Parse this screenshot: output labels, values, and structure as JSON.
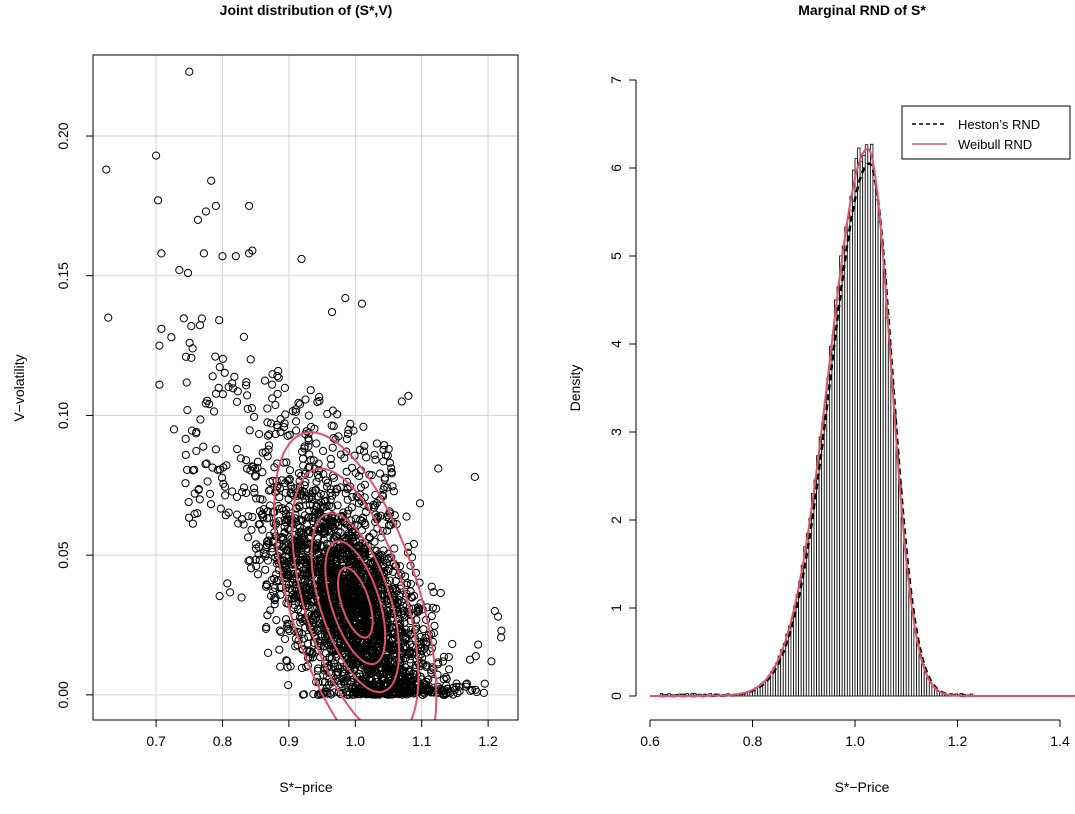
{
  "chart_data": [
    {
      "type": "scatter",
      "title": "Joint distribution of (S*,V)",
      "xlabel": "S*−price",
      "ylabel": "V−volatility",
      "xlim": [
        0.605,
        1.245
      ],
      "ylim": [
        -0.009,
        0.229
      ],
      "xticks": [
        0.7,
        0.8,
        0.9,
        1.0,
        1.1,
        1.2
      ],
      "xtick_labels": [
        "0.7",
        "0.8",
        "0.9",
        "1.0",
        "1.1",
        "1.2"
      ],
      "yticks": [
        0.0,
        0.05,
        0.1,
        0.15,
        0.2
      ],
      "ytick_labels": [
        "0.00",
        "0.05",
        "0.10",
        "0.15",
        "0.20"
      ],
      "grid": true,
      "marker": "open-circle",
      "outlier_points": [
        [
          0.625,
          0.188
        ],
        [
          0.75,
          0.223
        ],
        [
          0.628,
          0.135
        ],
        [
          0.7,
          0.193
        ],
        [
          0.703,
          0.177
        ],
        [
          0.783,
          0.184
        ],
        [
          0.79,
          0.175
        ],
        [
          0.84,
          0.175
        ],
        [
          0.919,
          0.156
        ],
        [
          0.708,
          0.158
        ],
        [
          0.763,
          0.17
        ],
        [
          0.775,
          0.173
        ],
        [
          0.708,
          0.131
        ],
        [
          0.705,
          0.125
        ],
        [
          0.705,
          0.111
        ],
        [
          0.735,
          0.152
        ],
        [
          0.748,
          0.151
        ],
        [
          0.723,
          0.128
        ],
        [
          0.727,
          0.095
        ],
        [
          0.755,
          0.124
        ],
        [
          0.749,
          0.069
        ],
        [
          0.762,
          0.065
        ],
        [
          0.772,
          0.158
        ],
        [
          0.8,
          0.157
        ],
        [
          0.82,
          0.157
        ],
        [
          0.84,
          0.158
        ],
        [
          0.845,
          0.159
        ],
        [
          0.985,
          0.142
        ],
        [
          1.01,
          0.14
        ],
        [
          0.965,
          0.137
        ],
        [
          1.07,
          0.105
        ],
        [
          1.08,
          0.107
        ],
        [
          1.125,
          0.081
        ],
        [
          1.18,
          0.078
        ],
        [
          1.21,
          0.03
        ],
        [
          1.215,
          0.028
        ],
        [
          1.22,
          0.023
        ],
        [
          1.185,
          0.018
        ],
        [
          1.205,
          0.012
        ],
        [
          1.195,
          0.004
        ]
      ],
      "contours": [
        {
          "level": 1,
          "center": [
            1.0,
            0.033
          ],
          "sd": [
            0.026,
            0.0125
          ],
          "rho": -0.55
        },
        {
          "level": 2,
          "center": [
            1.0,
            0.033
          ],
          "sd": [
            0.045,
            0.022
          ],
          "rho": -0.55
        },
        {
          "level": 3,
          "center": [
            1.0,
            0.033
          ],
          "sd": [
            0.066,
            0.032
          ],
          "rho": -0.55
        },
        {
          "level": 4,
          "center": [
            1.0,
            0.033
          ],
          "sd": [
            0.095,
            0.048
          ],
          "rho": -0.55
        },
        {
          "level": 5,
          "center": [
            1.0,
            0.033
          ],
          "sd": [
            0.122,
            0.061
          ],
          "rho": -0.55
        }
      ],
      "colors": {
        "points": "#000000",
        "contour": "#DF536B",
        "grid": "#d3d3d3"
      }
    },
    {
      "type": "bar",
      "title": "Marginal RND of S*",
      "xlabel": "S*−Price",
      "ylabel": "Density",
      "xlim": [
        0.57,
        1.43
      ],
      "ylim": [
        0,
        7.3
      ],
      "xticks": [
        0.6,
        0.8,
        1.0,
        1.2,
        1.4
      ],
      "xtick_labels": [
        "0.6",
        "0.8",
        "1.0",
        "1.2",
        "1.4"
      ],
      "yticks": [
        0,
        1,
        2,
        3,
        4,
        5,
        6,
        7
      ],
      "ytick_labels": [
        "0",
        "1",
        "2",
        "3",
        "4",
        "5",
        "6",
        "7"
      ],
      "histogram": {
        "bin_width": 0.005,
        "range": [
          0.62,
          1.225
        ],
        "peak_density": 6.45,
        "peak_at": 1.025
      },
      "series": [
        {
          "name": "Heston’s RND",
          "style": "dashed",
          "color": "#000000",
          "peak": 6.05,
          "mode": 1.028
        },
        {
          "name": "Weibull RND",
          "style": "solid",
          "color": "#DF536B",
          "peak": 6.22,
          "mode": 1.025
        }
      ],
      "legend": {
        "position": "top-right",
        "entries": [
          "Heston’s RND",
          "Weibull RND"
        ]
      }
    }
  ]
}
